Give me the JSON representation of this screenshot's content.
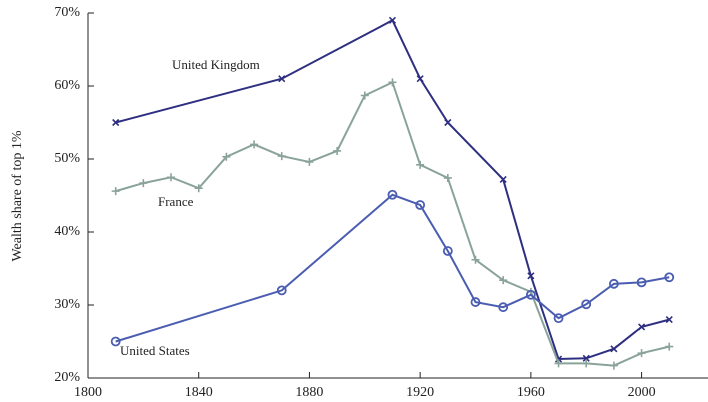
{
  "chart_data": {
    "type": "line",
    "y_label": "Wealth share of top 1%",
    "x": [
      1810,
      1870,
      1910,
      1920,
      1930,
      1950,
      1960,
      1970,
      1980,
      1990,
      2000,
      2010
    ],
    "series": [
      {
        "name": "United Kingdom",
        "color": "#2e2f80",
        "marker": "x",
        "x": [
          1810,
          1870,
          1910,
          1920,
          1930,
          1950,
          1960,
          1970,
          1980,
          1990,
          2000,
          2010
        ],
        "values": [
          55,
          61,
          69,
          61,
          55,
          47.2,
          34,
          22.6,
          22.7,
          24,
          27,
          28
        ]
      },
      {
        "name": "France",
        "color": "#8aa39a",
        "marker": "+",
        "x": [
          1810,
          1820,
          1830,
          1840,
          1850,
          1860,
          1870,
          1880,
          1890,
          1900,
          1910,
          1920,
          1930,
          1940,
          1950,
          1960,
          1970,
          1980,
          1990,
          2000,
          2010
        ],
        "values": [
          45.6,
          46.7,
          47.5,
          46,
          50.3,
          52,
          50.4,
          49.6,
          51.1,
          58.7,
          60.5,
          49.2,
          47.4,
          36.2,
          33.4,
          31.8,
          22,
          22,
          21.7,
          23.4,
          24.3
        ]
      },
      {
        "name": "United States",
        "color": "#4a5db0",
        "marker": "o",
        "x": [
          1810,
          1870,
          1910,
          1920,
          1930,
          1940,
          1950,
          1960,
          1970,
          1980,
          1990,
          2000,
          2010
        ],
        "values": [
          25,
          32,
          45.1,
          43.7,
          37.4,
          30.4,
          29.7,
          31.4,
          28.2,
          30.1,
          32.9,
          33.1,
          33.8
        ]
      }
    ],
    "xlim": [
      1800,
      2024
    ],
    "xticks": [
      1800,
      1840,
      1880,
      1920,
      1960,
      2000
    ],
    "ylim": [
      20,
      70
    ],
    "yticks": [
      {
        "value": 20,
        "label": "20%"
      },
      {
        "value": 30,
        "label": "30%"
      },
      {
        "value": 40,
        "label": "40%"
      },
      {
        "value": 50,
        "label": "50%"
      },
      {
        "value": 60,
        "label": "60%"
      },
      {
        "value": 70,
        "label": "70%"
      }
    ]
  }
}
